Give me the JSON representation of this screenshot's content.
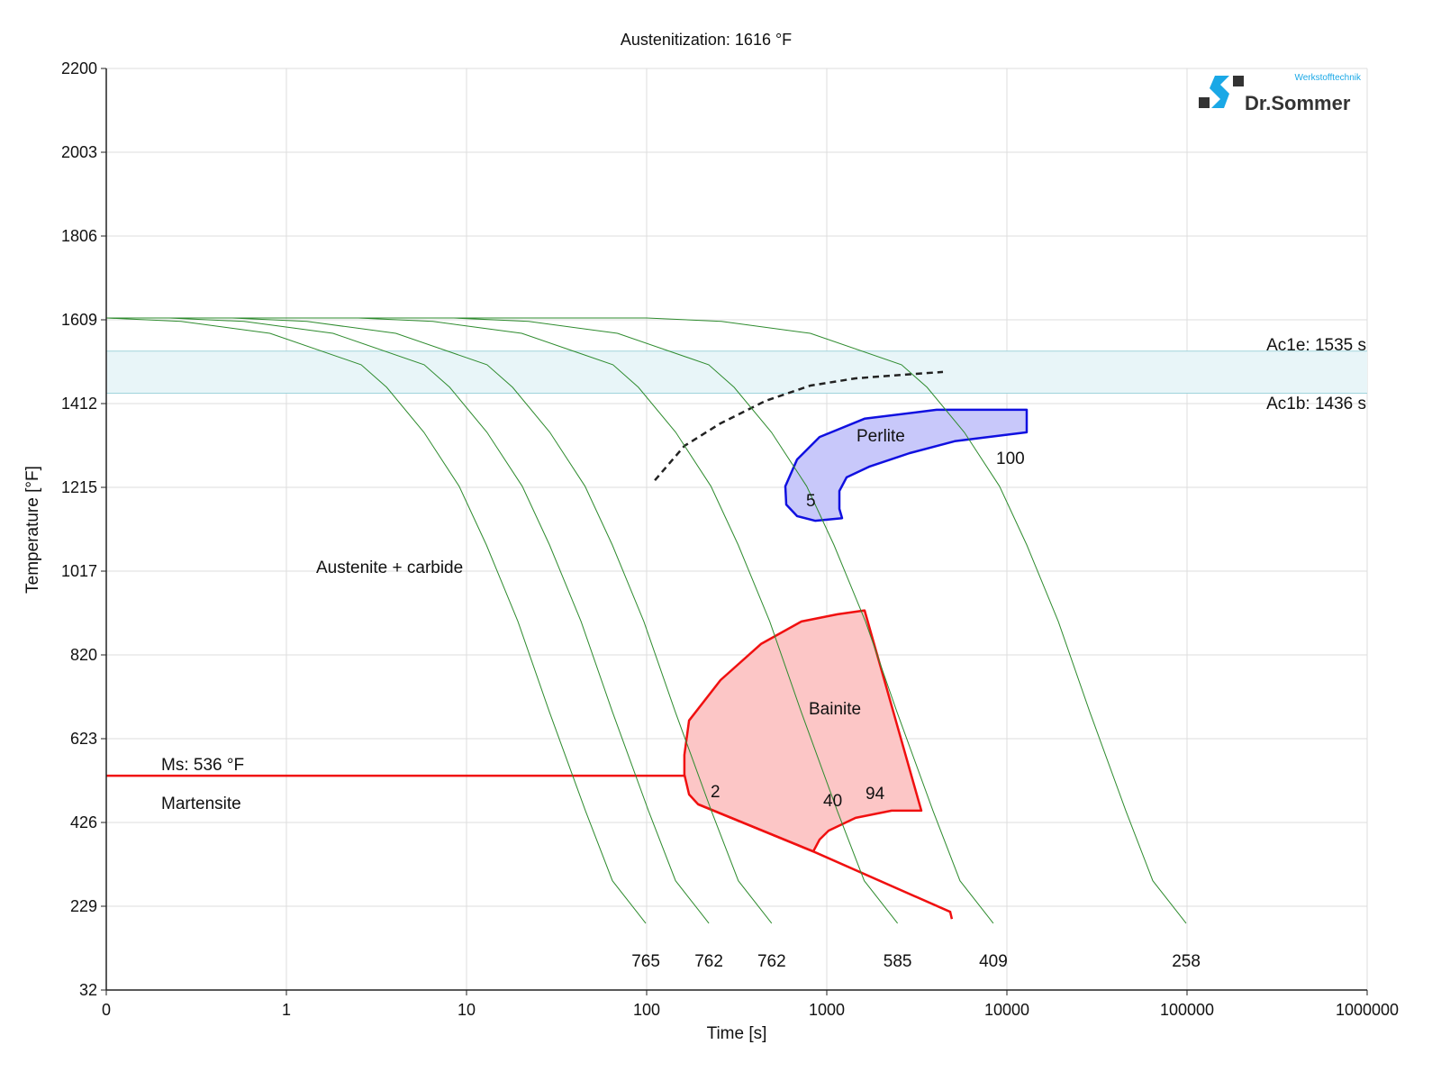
{
  "chart_data": {
    "type": "line",
    "title": "Austenitization: 1616 °F",
    "xlabel": "Time [s]",
    "ylabel": "Temperature [°F]",
    "x_scale": "log",
    "xlim": [
      0.1,
      1000000
    ],
    "ylim": [
      32,
      2200
    ],
    "grid": true,
    "x_ticks": [
      {
        "value": 0.1,
        "label": "0"
      },
      {
        "value": 1,
        "label": "1"
      },
      {
        "value": 10,
        "label": "10"
      },
      {
        "value": 100,
        "label": "100"
      },
      {
        "value": 1000,
        "label": "1000"
      },
      {
        "value": 10000,
        "label": "10000"
      },
      {
        "value": 100000,
        "label": "100000"
      },
      {
        "value": 1000000,
        "label": "1000000"
      }
    ],
    "y_ticks": [
      "2200",
      "2003",
      "1806",
      "1609",
      "1412",
      "1215",
      "1017",
      "820",
      "623",
      "426",
      "229",
      "32"
    ],
    "cooling_curve_base_profile": [
      [
        0.1,
        1613
      ],
      [
        0.26,
        1605
      ],
      [
        0.81,
        1577
      ],
      [
        2.6,
        1503
      ],
      [
        3.6,
        1450
      ],
      [
        5.8,
        1344
      ],
      [
        9.1,
        1217
      ],
      [
        12.9,
        1079
      ],
      [
        19.3,
        899
      ],
      [
        28.8,
        687
      ],
      [
        45.7,
        454
      ],
      [
        64.6,
        289
      ],
      [
        98.9,
        189
      ]
    ],
    "cooling_curves": [
      {
        "label": "765",
        "time_scale": 1
      },
      {
        "label": "762",
        "time_scale": 2.24
      },
      {
        "label": "762",
        "time_scale": 5.0
      },
      {
        "label": "585",
        "time_scale": 25
      },
      {
        "label": "409",
        "time_scale": 85
      },
      {
        "label": "258",
        "time_scale": 1000
      }
    ],
    "ac1e": {
      "label": "Ac1e: 1535 s",
      "value": 1535
    },
    "ac1b": {
      "label": "Ac1b: 1436 s",
      "value": 1436
    },
    "ms": {
      "label": "Ms: 536 °F",
      "value": 536,
      "t_end": 162
    },
    "perlite": {
      "label": "Perlite",
      "polygon": [
        [
          12880,
          1397
        ],
        [
          4070,
          1397
        ],
        [
          1620,
          1376
        ],
        [
          912,
          1333
        ],
        [
          684,
          1280
        ],
        [
          589,
          1217
        ],
        [
          596,
          1174
        ],
        [
          684,
          1147
        ],
        [
          861,
          1136
        ],
        [
          1216,
          1142
        ],
        [
          1175,
          1164
        ],
        [
          1175,
          1206
        ],
        [
          1288,
          1238
        ],
        [
          1718,
          1263
        ],
        [
          2884,
          1295
        ],
        [
          5130,
          1323
        ],
        [
          12880,
          1344
        ]
      ],
      "fractions": [
        "5",
        "100"
      ]
    },
    "bainite": {
      "label": "Bainite",
      "polygon": [
        [
          162,
          585
        ],
        [
          172,
          666
        ],
        [
          257,
          761
        ],
        [
          431,
          846
        ],
        [
          724,
          899
        ],
        [
          1148,
          916
        ],
        [
          1622,
          925
        ],
        [
          3350,
          454
        ],
        [
          2290,
          454
        ],
        [
          1445,
          437
        ],
        [
          1023,
          407
        ],
        [
          912,
          386
        ],
        [
          841,
          358
        ],
        [
          193,
          469
        ],
        [
          172,
          492
        ],
        [
          162,
          539
        ]
      ],
      "lower_line": [
        [
          193,
          469
        ],
        [
          841,
          358
        ],
        [
          4840,
          216
        ],
        [
          4950,
          199
        ]
      ],
      "fractions": [
        "2",
        "40",
        "94"
      ]
    },
    "dashed_curve": [
      [
        111,
        1231
      ],
      [
        162,
        1312
      ],
      [
        257,
        1365
      ],
      [
        457,
        1418
      ],
      [
        813,
        1454
      ],
      [
        1445,
        1471
      ],
      [
        2570,
        1479
      ],
      [
        4415,
        1486
      ]
    ],
    "region_labels": {
      "austenite_carbide": "Austenite + carbide",
      "martensite": "Martensite"
    },
    "colors": {
      "cooling": "#2e8b2e",
      "perlite_line": "#1010e0",
      "perlite_fill": "#c8c8fa",
      "bainite_line": "#f01010",
      "bainite_fill": "#fcc6c6",
      "ac_band": "#e8f5f8",
      "ac_line": "#9fd4dc",
      "grid": "#dddddd"
    }
  },
  "logo": {
    "name": "Dr.Sommer",
    "sub": "Werkstofftechnik"
  }
}
